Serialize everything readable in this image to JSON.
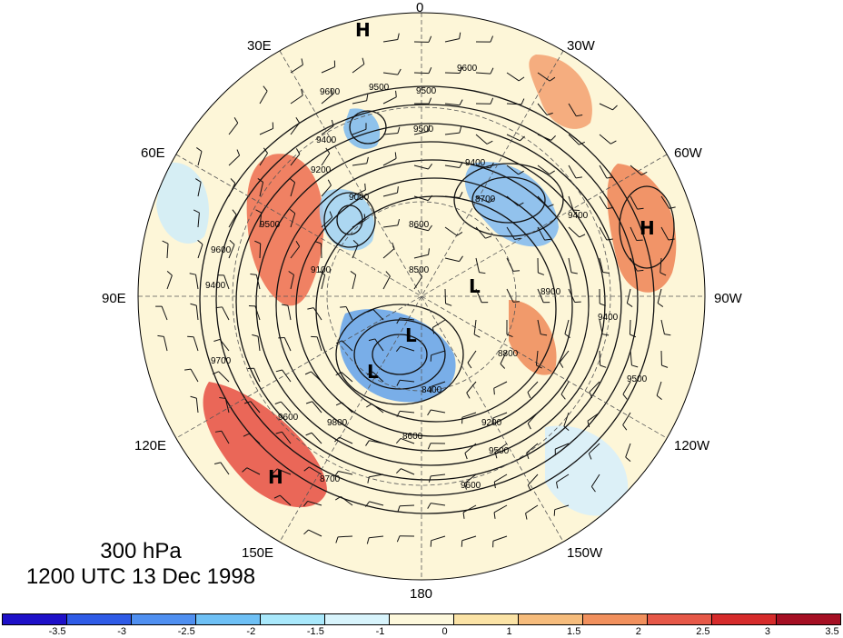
{
  "title": {
    "level": "300 hPa",
    "datetime": "1200 UTC 13 Dec 1998"
  },
  "map": {
    "projection": "north polar stereographic",
    "longitude_labels": [
      {
        "id": "lon-0",
        "text": "0"
      },
      {
        "id": "lon-30w",
        "text": "30W"
      },
      {
        "id": "lon-60w",
        "text": "60W"
      },
      {
        "id": "lon-90w",
        "text": "90W"
      },
      {
        "id": "lon-120w",
        "text": "120W"
      },
      {
        "id": "lon-150w",
        "text": "150W"
      },
      {
        "id": "lon-180",
        "text": "180"
      },
      {
        "id": "lon-150e",
        "text": "150E"
      },
      {
        "id": "lon-120e",
        "text": "120E"
      },
      {
        "id": "lon-90e",
        "text": "90E"
      },
      {
        "id": "lon-60e",
        "text": "60E"
      },
      {
        "id": "lon-30e",
        "text": "30E"
      }
    ],
    "pressure_centers": [
      {
        "id": "h-north",
        "text": "H"
      },
      {
        "id": "h-atlantic",
        "text": "H"
      },
      {
        "id": "h-pacific",
        "text": "H"
      },
      {
        "id": "l-canada",
        "text": "L"
      },
      {
        "id": "l-siberia-1",
        "text": "L"
      },
      {
        "id": "l-siberia-2",
        "text": "L"
      }
    ],
    "contour_labels": [
      {
        "id": "c1",
        "text": "9600"
      },
      {
        "id": "c2",
        "text": "9500"
      },
      {
        "id": "c3",
        "text": "9500"
      },
      {
        "id": "c4",
        "text": "9600"
      },
      {
        "id": "c5",
        "text": "9400"
      },
      {
        "id": "c6",
        "text": "9200"
      },
      {
        "id": "c7",
        "text": "9000"
      },
      {
        "id": "c8",
        "text": "8600"
      },
      {
        "id": "c9",
        "text": "8700"
      },
      {
        "id": "c10",
        "text": "9400"
      },
      {
        "id": "c11",
        "text": "9500"
      },
      {
        "id": "c12",
        "text": "9600"
      },
      {
        "id": "c13",
        "text": "9100"
      },
      {
        "id": "c14",
        "text": "9400"
      },
      {
        "id": "c15",
        "text": "9700"
      },
      {
        "id": "c16",
        "text": "9600"
      },
      {
        "id": "c17",
        "text": "9800"
      },
      {
        "id": "c18",
        "text": "8600"
      },
      {
        "id": "c19",
        "text": "8400"
      },
      {
        "id": "c20",
        "text": "9200"
      },
      {
        "id": "c21",
        "text": "9500"
      },
      {
        "id": "c22",
        "text": "9600"
      },
      {
        "id": "c23",
        "text": "8700"
      },
      {
        "id": "c24",
        "text": "8900"
      },
      {
        "id": "c25",
        "text": "9400"
      },
      {
        "id": "c26",
        "text": "9500"
      },
      {
        "id": "c27",
        "text": "8500"
      },
      {
        "id": "c28",
        "text": "9400"
      },
      {
        "id": "c29",
        "text": "8800"
      },
      {
        "id": "c30",
        "text": "9500"
      }
    ]
  },
  "colorbar": {
    "colors": [
      "#1e10c8",
      "#2f5be6",
      "#4f8ff0",
      "#6ec0f5",
      "#a9e8fb",
      "#d8f4fc",
      "#fdf8dc",
      "#fbe3a6",
      "#f6bc7c",
      "#f1905d",
      "#e65848",
      "#d62b2b",
      "#a50f23"
    ],
    "tick_labels": [
      "-3.5",
      "-3",
      "-2.5",
      "-2",
      "-1.5",
      "-1",
      "0",
      "1",
      "1.5",
      "2",
      "2.5",
      "3",
      "3.5"
    ]
  }
}
